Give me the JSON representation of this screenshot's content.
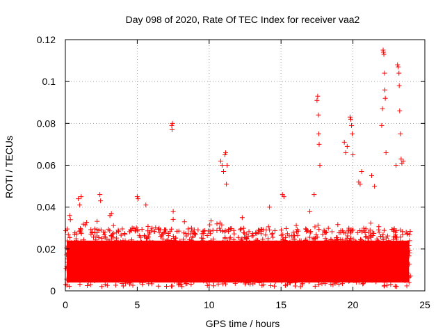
{
  "chart_data": {
    "type": "scatter",
    "title": "Day 098 of 2020, Rate Of TEC Index for receiver vaa2",
    "xlabel": "GPS time / hours",
    "ylabel": "ROTI / TECUs",
    "xlim": [
      0,
      25
    ],
    "ylim": [
      0,
      0.12
    ],
    "x_ticks": [
      0,
      5,
      10,
      15,
      20,
      25
    ],
    "x_tick_labels": [
      "0",
      "5",
      "10",
      "15",
      "20",
      "25"
    ],
    "y_ticks": [
      0,
      0.02,
      0.04,
      0.06,
      0.08,
      0.1,
      0.12
    ],
    "y_tick_labels": [
      "0",
      "0.02",
      "0.04",
      "0.06",
      "0.08",
      "0.1",
      "0.12"
    ],
    "grid": true,
    "marker": "+",
    "color": "#ff0000",
    "baseline_band": {
      "x_range": [
        0,
        24
      ],
      "y_range": [
        0.002,
        0.03
      ],
      "note": "dense continuous band of ROTI values"
    },
    "series": [
      {
        "name": "ROTI",
        "x": [
          0.3,
          0.35,
          0.9,
          1.0,
          1.1,
          2.4,
          2.45,
          3.1,
          3.2,
          5.0,
          5.05,
          5.6,
          7.4,
          7.42,
          7.45,
          7.5,
          10.8,
          10.9,
          11.0,
          11.1,
          11.15,
          11.2,
          11.25,
          12.3,
          14.2,
          15.1,
          15.2,
          17.0,
          17.3,
          17.5,
          17.55,
          17.6,
          17.62,
          17.65,
          17.7,
          19.4,
          19.5,
          19.6,
          19.8,
          19.85,
          19.9,
          19.95,
          20.0,
          20.4,
          20.5,
          20.6,
          21.3,
          21.5,
          22.0,
          22.05,
          22.1,
          22.12,
          22.15,
          22.2,
          22.22,
          22.25,
          22.3,
          23.0,
          23.1,
          23.15,
          23.2,
          23.22,
          23.25,
          23.3,
          23.35,
          23.4,
          23.5
        ],
        "y": [
          0.036,
          0.034,
          0.044,
          0.041,
          0.045,
          0.046,
          0.043,
          0.036,
          0.037,
          0.045,
          0.044,
          0.041,
          0.079,
          0.077,
          0.08,
          0.038,
          0.062,
          0.06,
          0.057,
          0.065,
          0.066,
          0.051,
          0.06,
          0.035,
          0.04,
          0.046,
          0.045,
          0.038,
          0.046,
          0.091,
          0.093,
          0.084,
          0.075,
          0.07,
          0.06,
          0.071,
          0.066,
          0.069,
          0.083,
          0.082,
          0.079,
          0.075,
          0.065,
          0.052,
          0.051,
          0.057,
          0.055,
          0.05,
          0.079,
          0.087,
          0.115,
          0.114,
          0.113,
          0.104,
          0.096,
          0.092,
          0.066,
          0.06,
          0.108,
          0.107,
          0.104,
          0.098,
          0.086,
          0.075,
          0.063,
          0.061,
          0.062
        ]
      }
    ]
  }
}
